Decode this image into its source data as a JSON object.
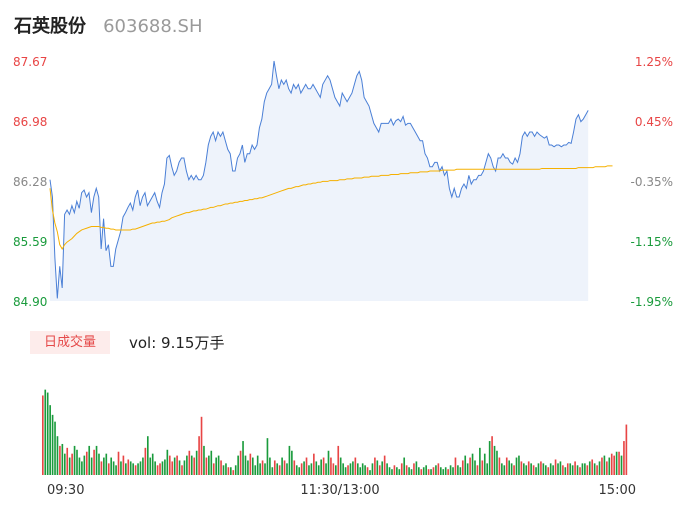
{
  "header": {
    "name": "石英股份",
    "code": "603688.SH"
  },
  "volume_panel": {
    "badge": "日成交量",
    "label": "vol: 9.15万手"
  },
  "colors": {
    "up": "#e84545",
    "down": "#1a9b3c",
    "price_line": "#4a7fd6",
    "avg_line": "#f5b000",
    "area_fill": "#eef3fb",
    "neutral": "#888888"
  },
  "chart_data": [
    {
      "type": "line",
      "title": "",
      "price_ticks": [
        "87.67",
        "86.98",
        "86.28",
        "85.59",
        "84.90"
      ],
      "pct_ticks": [
        "1.25%",
        "0.45%",
        "-0.35%",
        "-1.15%",
        "-1.95%"
      ],
      "ylim": [
        84.9,
        87.67
      ],
      "x_ticks": [
        "09:30",
        "11:30/13:00",
        "15:00"
      ],
      "x_points": 240,
      "series": [
        {
          "values": [
            86.3,
            86.1,
            85.4,
            84.93,
            85.3,
            85.05,
            85.9,
            85.95,
            85.9,
            86.0,
            85.92,
            86.05,
            85.97,
            86.15,
            86.18,
            86.1,
            86.15,
            85.92,
            86.1,
            86.2,
            86.1,
            85.5,
            85.85,
            85.48,
            85.55,
            85.3,
            85.3,
            85.5,
            85.6,
            85.7,
            85.87,
            85.92,
            85.98,
            86.03,
            85.95,
            86.1,
            86.18,
            86.0,
            86.1,
            86.15,
            86.0,
            86.05,
            86.1,
            86.15,
            86.05,
            85.98,
            86.15,
            86.25,
            86.55,
            86.58,
            86.45,
            86.35,
            86.4,
            86.5,
            86.55,
            86.55,
            86.4,
            86.3,
            86.35,
            86.3,
            86.35,
            86.3,
            86.3,
            86.35,
            86.5,
            86.7,
            86.8,
            86.85,
            86.75,
            86.85,
            86.8,
            86.85,
            86.75,
            86.65,
            86.6,
            86.4,
            86.4,
            86.55,
            86.6,
            86.7,
            86.5,
            86.6,
            86.6,
            86.7,
            86.65,
            86.7,
            86.9,
            87.0,
            87.2,
            87.3,
            87.35,
            87.4,
            87.67,
            87.5,
            87.35,
            87.45,
            87.4,
            87.45,
            87.35,
            87.3,
            87.4,
            87.35,
            87.4,
            87.3,
            87.35,
            87.4,
            87.35,
            87.35,
            87.4,
            87.35,
            87.3,
            87.25,
            87.4,
            87.45,
            87.5,
            87.45,
            87.35,
            87.25,
            87.2,
            87.15,
            87.3,
            87.25,
            87.2,
            87.25,
            87.3,
            87.4,
            87.5,
            87.55,
            87.45,
            87.25,
            87.2,
            87.15,
            87.05,
            86.95,
            86.9,
            86.85,
            86.95,
            86.95,
            86.95,
            86.95,
            87.0,
            86.93,
            86.98,
            87.0,
            86.97,
            87.03,
            86.93,
            86.95,
            86.95,
            86.9,
            86.85,
            86.8,
            86.75,
            86.75,
            86.6,
            86.55,
            86.45,
            86.45,
            86.5,
            86.5,
            86.4,
            86.45,
            86.35,
            86.4,
            86.2,
            86.1,
            86.2,
            86.1,
            86.1,
            86.2,
            86.25,
            86.2,
            86.35,
            86.25,
            86.3,
            86.3,
            86.35,
            86.35,
            86.4,
            86.5,
            86.6,
            86.55,
            86.45,
            86.4,
            86.55,
            86.55,
            86.6,
            86.55,
            86.55,
            86.5,
            86.48,
            86.55,
            86.5,
            86.6,
            86.8,
            86.85,
            86.8,
            86.85,
            86.85,
            86.8,
            86.85,
            86.82,
            86.8,
            86.78,
            86.8,
            86.7,
            86.7,
            86.68,
            86.7,
            86.7,
            86.68,
            86.7,
            86.7,
            86.73,
            86.72,
            86.85,
            87.0,
            87.05,
            86.97,
            87.0,
            87.05,
            87.1
          ]
        },
        {
          "values": [
            86.2,
            85.95,
            85.8,
            85.7,
            85.55,
            85.5,
            85.55,
            85.58,
            85.6,
            85.62,
            85.65,
            85.68,
            85.7,
            85.72,
            85.73,
            85.74,
            85.75,
            85.76,
            85.76,
            85.76,
            85.76,
            85.75,
            85.75,
            85.74,
            85.74,
            85.73,
            85.73,
            85.72,
            85.72,
            85.72,
            85.72,
            85.72,
            85.72,
            85.72,
            85.73,
            85.73,
            85.74,
            85.75,
            85.76,
            85.77,
            85.78,
            85.79,
            85.8,
            85.8,
            85.81,
            85.81,
            85.82,
            85.82,
            85.83,
            85.84,
            85.86,
            85.87,
            85.88,
            85.89,
            85.9,
            85.91,
            85.92,
            85.92,
            85.93,
            85.94,
            85.94,
            85.95,
            85.95,
            85.96,
            85.96,
            85.97,
            85.98,
            85.98,
            85.99,
            86.0,
            86.0,
            86.01,
            86.02,
            86.02,
            86.03,
            86.03,
            86.04,
            86.04,
            86.05,
            86.05,
            86.06,
            86.06,
            86.07,
            86.07,
            86.08,
            86.08,
            86.09,
            86.09,
            86.1,
            86.11,
            86.12,
            86.13,
            86.14,
            86.15,
            86.16,
            86.17,
            86.18,
            86.19,
            86.2,
            86.2,
            86.21,
            86.22,
            86.22,
            86.23,
            86.24,
            86.24,
            86.25,
            86.25,
            86.26,
            86.26,
            86.27,
            86.27,
            86.28,
            86.28,
            86.28,
            86.29,
            86.29,
            86.29,
            86.29,
            86.3,
            86.3,
            86.3,
            86.31,
            86.31,
            86.31,
            86.32,
            86.32,
            86.32,
            86.32,
            86.33,
            86.33,
            86.33,
            86.34,
            86.34,
            86.34,
            86.34,
            86.35,
            86.35,
            86.35,
            86.35,
            86.36,
            86.36,
            86.36,
            86.36,
            86.37,
            86.37,
            86.37,
            86.37,
            86.38,
            86.38,
            86.38,
            86.38,
            86.39,
            86.39,
            86.39,
            86.39,
            86.4,
            86.4,
            86.4,
            86.4,
            86.4,
            86.41,
            86.41,
            86.41,
            86.41,
            86.41,
            86.41,
            86.42,
            86.42,
            86.42,
            86.42,
            86.42,
            86.42,
            86.42,
            86.42,
            86.42,
            86.42,
            86.42,
            86.42,
            86.42,
            86.42,
            86.42,
            86.42,
            86.42,
            86.42,
            86.42,
            86.42,
            86.42,
            86.42,
            86.42,
            86.42,
            86.42,
            86.42,
            86.42,
            86.42,
            86.42,
            86.42,
            86.42,
            86.42,
            86.42,
            86.42,
            86.42,
            86.43,
            86.43,
            86.43,
            86.43,
            86.43,
            86.43,
            86.43,
            86.43,
            86.43,
            86.43,
            86.43,
            86.43,
            86.43,
            86.43,
            86.43,
            86.44,
            86.44,
            86.44,
            86.44,
            86.44,
            86.44,
            86.44,
            86.45,
            86.45,
            86.45,
            86.45,
            86.45,
            86.46,
            86.46,
            86.46
          ]
        }
      ]
    },
    {
      "type": "bar",
      "title": "",
      "x_points": 240,
      "ylim": [
        0,
        100
      ],
      "values": [
        82,
        88,
        85,
        72,
        62,
        55,
        40,
        30,
        32,
        22,
        28,
        18,
        22,
        30,
        26,
        18,
        14,
        20,
        24,
        30,
        18,
        26,
        30,
        22,
        14,
        18,
        22,
        12,
        18,
        14,
        10,
        24,
        14,
        20,
        12,
        16,
        14,
        12,
        10,
        12,
        14,
        18,
        28,
        40,
        18,
        22,
        14,
        10,
        12,
        14,
        16,
        26,
        20,
        14,
        18,
        20,
        15,
        10,
        15,
        20,
        25,
        20,
        18,
        25,
        40,
        60,
        30,
        18,
        20,
        25,
        12,
        18,
        20,
        15,
        10,
        12,
        8,
        8,
        5,
        10,
        20,
        25,
        35,
        20,
        15,
        22,
        18,
        10,
        20,
        12,
        15,
        12,
        38,
        18,
        8,
        15,
        12,
        10,
        18,
        15,
        12,
        30,
        25,
        15,
        10,
        8,
        12,
        14,
        18,
        10,
        12,
        22,
        14,
        10,
        16,
        18,
        12,
        25,
        18,
        12,
        10,
        30,
        18,
        12,
        8,
        10,
        12,
        14,
        18,
        12,
        8,
        12,
        10,
        8,
        5,
        12,
        18,
        15,
        10,
        14,
        20,
        12,
        8,
        6,
        10,
        8,
        6,
        12,
        18,
        10,
        8,
        6,
        12,
        14,
        8,
        6,
        8,
        10,
        6,
        6,
        8,
        10,
        12,
        8,
        6,
        8,
        6,
        10,
        8,
        18,
        10,
        8,
        15,
        20,
        12,
        18,
        22,
        15,
        10,
        28,
        15,
        22,
        12,
        35,
        40,
        30,
        25,
        18,
        12,
        10,
        18,
        15,
        12,
        10,
        18,
        20,
        14,
        12,
        10,
        14,
        12,
        10,
        8,
        12,
        14,
        12,
        10,
        8,
        12,
        10,
        16,
        12,
        14,
        10,
        8,
        12,
        12,
        10,
        14,
        10,
        8,
        12,
        12,
        10,
        14,
        16,
        12,
        10,
        14,
        18,
        20,
        14,
        18,
        22,
        20,
        24,
        24,
        20,
        35,
        52
      ],
      "up": [
        true,
        false,
        false,
        false,
        false,
        false,
        false,
        true,
        false,
        false,
        true,
        false,
        true,
        false,
        false,
        false,
        false,
        false,
        true,
        false,
        false,
        true,
        false,
        false,
        true,
        false,
        false,
        true,
        false,
        false,
        false,
        true,
        false,
        true,
        false,
        true,
        false,
        false,
        true,
        false,
        false,
        false,
        true,
        false,
        false,
        false,
        false,
        true,
        true,
        false,
        false,
        false,
        true,
        true,
        false,
        true,
        false,
        true,
        false,
        false,
        true,
        false,
        true,
        false,
        true,
        true,
        false,
        true,
        false,
        false,
        true,
        false,
        false,
        true,
        false,
        false,
        true,
        false,
        true,
        false,
        false,
        true,
        false,
        false,
        false,
        true,
        false,
        false,
        false,
        false,
        true,
        false,
        false,
        false,
        false,
        true,
        false,
        true,
        false,
        true,
        false,
        false,
        false,
        true,
        false,
        false,
        true,
        false,
        true,
        false,
        false,
        true,
        false,
        false,
        false,
        true,
        false,
        false,
        true,
        true,
        false,
        true,
        false,
        false,
        false,
        true,
        false,
        false,
        true,
        false,
        false,
        false,
        false,
        true,
        false,
        false,
        true,
        false,
        true,
        false,
        true,
        false,
        false,
        false,
        true,
        false,
        false,
        true,
        false,
        true,
        false,
        false,
        true,
        false,
        false,
        true,
        false,
        false,
        true,
        false,
        true,
        false,
        true,
        false,
        false,
        false,
        true,
        false,
        false,
        true,
        false,
        false,
        true,
        false,
        false,
        true,
        false,
        false,
        true,
        false,
        true,
        false,
        false,
        false,
        true,
        false,
        false,
        true,
        false,
        false,
        true,
        false,
        false,
        true,
        false,
        false,
        true,
        false,
        false,
        true,
        false,
        true,
        false,
        false,
        true,
        false,
        false,
        true,
        false,
        false,
        true,
        false,
        false,
        true,
        false,
        true,
        false,
        false,
        true,
        false,
        true,
        false,
        false,
        true,
        false,
        true,
        false,
        true,
        false,
        true,
        false,
        true,
        false,
        true,
        true,
        false,
        true,
        false,
        true,
        true
      ]
    }
  ]
}
